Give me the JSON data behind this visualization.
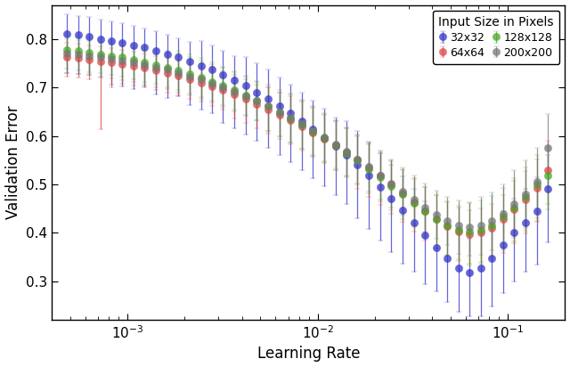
{
  "series": [
    {
      "label": "32x32",
      "color": "#3333cc",
      "x": [
        0.00048,
        0.00055,
        0.00063,
        0.00072,
        0.00082,
        0.00094,
        0.00108,
        0.00123,
        0.00141,
        0.00162,
        0.00185,
        0.00212,
        0.00243,
        0.00278,
        0.00318,
        0.00365,
        0.00418,
        0.00479,
        0.00548,
        0.00628,
        0.00719,
        0.00824,
        0.00944,
        0.0108,
        0.0124,
        0.0142,
        0.0162,
        0.0186,
        0.0213,
        0.0244,
        0.0279,
        0.032,
        0.0366,
        0.0419,
        0.048,
        0.055,
        0.063,
        0.0721,
        0.0826,
        0.0946,
        0.108,
        0.124,
        0.142,
        0.163
      ],
      "y": [
        0.81,
        0.808,
        0.805,
        0.8,
        0.796,
        0.792,
        0.787,
        0.782,
        0.776,
        0.769,
        0.762,
        0.754,
        0.745,
        0.736,
        0.726,
        0.715,
        0.703,
        0.69,
        0.676,
        0.661,
        0.646,
        0.63,
        0.613,
        0.596,
        0.578,
        0.56,
        0.54,
        0.518,
        0.495,
        0.47,
        0.446,
        0.42,
        0.395,
        0.37,
        0.347,
        0.328,
        0.318,
        0.328,
        0.348,
        0.375,
        0.4,
        0.42,
        0.445,
        0.49
      ],
      "yerr_lo": [
        0.08,
        0.08,
        0.08,
        0.08,
        0.09,
        0.09,
        0.09,
        0.08,
        0.09,
        0.09,
        0.08,
        0.09,
        0.09,
        0.09,
        0.1,
        0.1,
        0.1,
        0.1,
        0.1,
        0.1,
        0.1,
        0.1,
        0.1,
        0.1,
        0.1,
        0.1,
        0.11,
        0.11,
        0.11,
        0.11,
        0.11,
        0.1,
        0.1,
        0.09,
        0.09,
        0.09,
        0.09,
        0.1,
        0.1,
        0.1,
        0.1,
        0.1,
        0.11,
        0.11
      ],
      "yerr_hi": [
        0.04,
        0.04,
        0.04,
        0.04,
        0.04,
        0.04,
        0.04,
        0.04,
        0.04,
        0.04,
        0.04,
        0.04,
        0.05,
        0.05,
        0.05,
        0.05,
        0.06,
        0.06,
        0.06,
        0.06,
        0.06,
        0.06,
        0.06,
        0.06,
        0.06,
        0.07,
        0.07,
        0.07,
        0.07,
        0.07,
        0.07,
        0.07,
        0.07,
        0.07,
        0.07,
        0.07,
        0.07,
        0.07,
        0.07,
        0.07,
        0.07,
        0.07,
        0.07,
        0.07
      ]
    },
    {
      "label": "64x64",
      "color": "#dd4444",
      "x": [
        0.00048,
        0.00055,
        0.00063,
        0.00072,
        0.00082,
        0.00094,
        0.00108,
        0.00123,
        0.00141,
        0.00162,
        0.00185,
        0.00212,
        0.00243,
        0.00278,
        0.00318,
        0.00365,
        0.00418,
        0.00479,
        0.00548,
        0.00628,
        0.00719,
        0.00824,
        0.00944,
        0.0108,
        0.0124,
        0.0142,
        0.0162,
        0.0186,
        0.0213,
        0.0244,
        0.0279,
        0.032,
        0.0366,
        0.0419,
        0.048,
        0.055,
        0.063,
        0.0721,
        0.0826,
        0.0946,
        0.108,
        0.124,
        0.142,
        0.163
      ],
      "y": [
        0.762,
        0.76,
        0.757,
        0.754,
        0.751,
        0.748,
        0.744,
        0.74,
        0.735,
        0.73,
        0.724,
        0.717,
        0.71,
        0.702,
        0.694,
        0.685,
        0.676,
        0.666,
        0.655,
        0.644,
        0.632,
        0.62,
        0.607,
        0.594,
        0.58,
        0.566,
        0.551,
        0.535,
        0.518,
        0.5,
        0.482,
        0.463,
        0.445,
        0.428,
        0.413,
        0.402,
        0.397,
        0.4,
        0.41,
        0.428,
        0.448,
        0.468,
        0.492,
        0.53
      ],
      "yerr_lo": [
        0.04,
        0.04,
        0.04,
        0.14,
        0.05,
        0.04,
        0.04,
        0.04,
        0.04,
        0.04,
        0.04,
        0.04,
        0.04,
        0.04,
        0.04,
        0.05,
        0.05,
        0.05,
        0.05,
        0.05,
        0.05,
        0.05,
        0.05,
        0.05,
        0.05,
        0.05,
        0.06,
        0.06,
        0.06,
        0.06,
        0.06,
        0.06,
        0.06,
        0.06,
        0.06,
        0.06,
        0.06,
        0.06,
        0.06,
        0.07,
        0.07,
        0.07,
        0.07,
        0.07
      ],
      "yerr_hi": [
        0.03,
        0.03,
        0.03,
        0.03,
        0.03,
        0.03,
        0.03,
        0.03,
        0.03,
        0.04,
        0.04,
        0.04,
        0.04,
        0.04,
        0.04,
        0.04,
        0.04,
        0.04,
        0.05,
        0.05,
        0.05,
        0.05,
        0.05,
        0.05,
        0.05,
        0.05,
        0.05,
        0.05,
        0.05,
        0.05,
        0.05,
        0.05,
        0.05,
        0.05,
        0.05,
        0.05,
        0.05,
        0.05,
        0.05,
        0.05,
        0.06,
        0.06,
        0.06,
        0.06
      ]
    },
    {
      "label": "128x128",
      "color": "#44aa22",
      "x": [
        0.00048,
        0.00055,
        0.00063,
        0.00072,
        0.00082,
        0.00094,
        0.00108,
        0.00123,
        0.00141,
        0.00162,
        0.00185,
        0.00212,
        0.00243,
        0.00278,
        0.00318,
        0.00365,
        0.00418,
        0.00479,
        0.00548,
        0.00628,
        0.00719,
        0.00824,
        0.00944,
        0.0108,
        0.0124,
        0.0142,
        0.0162,
        0.0186,
        0.0213,
        0.0244,
        0.0279,
        0.032,
        0.0366,
        0.0419,
        0.048,
        0.055,
        0.063,
        0.0721,
        0.0826,
        0.0946,
        0.108,
        0.124,
        0.142,
        0.163
      ],
      "y": [
        0.778,
        0.775,
        0.772,
        0.769,
        0.765,
        0.762,
        0.757,
        0.752,
        0.747,
        0.741,
        0.735,
        0.728,
        0.72,
        0.712,
        0.703,
        0.694,
        0.684,
        0.673,
        0.661,
        0.649,
        0.636,
        0.623,
        0.609,
        0.595,
        0.58,
        0.565,
        0.549,
        0.532,
        0.515,
        0.497,
        0.479,
        0.461,
        0.444,
        0.428,
        0.415,
        0.406,
        0.403,
        0.407,
        0.416,
        0.433,
        0.453,
        0.475,
        0.5,
        0.518
      ],
      "yerr_lo": [
        0.04,
        0.04,
        0.04,
        0.04,
        0.04,
        0.04,
        0.04,
        0.04,
        0.04,
        0.04,
        0.04,
        0.04,
        0.04,
        0.04,
        0.04,
        0.04,
        0.04,
        0.04,
        0.05,
        0.05,
        0.05,
        0.05,
        0.05,
        0.05,
        0.05,
        0.05,
        0.05,
        0.05,
        0.05,
        0.05,
        0.05,
        0.05,
        0.05,
        0.06,
        0.06,
        0.06,
        0.07,
        0.07,
        0.07,
        0.07,
        0.07,
        0.07,
        0.07,
        0.07
      ],
      "yerr_hi": [
        0.03,
        0.03,
        0.03,
        0.03,
        0.03,
        0.03,
        0.03,
        0.03,
        0.03,
        0.03,
        0.04,
        0.04,
        0.04,
        0.04,
        0.04,
        0.04,
        0.04,
        0.04,
        0.04,
        0.04,
        0.05,
        0.05,
        0.05,
        0.05,
        0.05,
        0.05,
        0.05,
        0.05,
        0.05,
        0.05,
        0.05,
        0.05,
        0.05,
        0.05,
        0.05,
        0.05,
        0.06,
        0.06,
        0.06,
        0.06,
        0.06,
        0.06,
        0.06,
        0.06
      ]
    },
    {
      "label": "200x200",
      "color": "#777777",
      "x": [
        0.00048,
        0.00055,
        0.00063,
        0.00072,
        0.00082,
        0.00094,
        0.00108,
        0.00123,
        0.00141,
        0.00162,
        0.00185,
        0.00212,
        0.00243,
        0.00278,
        0.00318,
        0.00365,
        0.00418,
        0.00479,
        0.00548,
        0.00628,
        0.00719,
        0.00824,
        0.00944,
        0.0108,
        0.0124,
        0.0142,
        0.0162,
        0.0186,
        0.0213,
        0.0244,
        0.0279,
        0.032,
        0.0366,
        0.0419,
        0.048,
        0.055,
        0.063,
        0.0721,
        0.0826,
        0.0946,
        0.108,
        0.124,
        0.142,
        0.163
      ],
      "y": [
        0.77,
        0.768,
        0.765,
        0.762,
        0.759,
        0.755,
        0.751,
        0.746,
        0.741,
        0.736,
        0.73,
        0.723,
        0.716,
        0.708,
        0.7,
        0.691,
        0.682,
        0.672,
        0.661,
        0.649,
        0.637,
        0.624,
        0.611,
        0.597,
        0.583,
        0.568,
        0.552,
        0.536,
        0.519,
        0.502,
        0.485,
        0.468,
        0.452,
        0.437,
        0.425,
        0.416,
        0.412,
        0.415,
        0.424,
        0.44,
        0.46,
        0.48,
        0.505,
        0.575
      ],
      "yerr_lo": [
        0.04,
        0.04,
        0.04,
        0.04,
        0.04,
        0.04,
        0.04,
        0.04,
        0.04,
        0.04,
        0.04,
        0.04,
        0.04,
        0.04,
        0.04,
        0.04,
        0.04,
        0.04,
        0.05,
        0.05,
        0.05,
        0.05,
        0.05,
        0.05,
        0.05,
        0.05,
        0.05,
        0.05,
        0.05,
        0.05,
        0.05,
        0.05,
        0.05,
        0.05,
        0.05,
        0.06,
        0.06,
        0.06,
        0.06,
        0.07,
        0.07,
        0.07,
        0.08,
        0.08
      ],
      "yerr_hi": [
        0.03,
        0.03,
        0.03,
        0.03,
        0.03,
        0.03,
        0.03,
        0.03,
        0.03,
        0.04,
        0.04,
        0.04,
        0.04,
        0.04,
        0.04,
        0.04,
        0.04,
        0.04,
        0.04,
        0.04,
        0.05,
        0.05,
        0.05,
        0.05,
        0.05,
        0.05,
        0.05,
        0.05,
        0.05,
        0.05,
        0.05,
        0.05,
        0.05,
        0.05,
        0.05,
        0.05,
        0.05,
        0.06,
        0.06,
        0.06,
        0.07,
        0.07,
        0.07,
        0.07
      ]
    }
  ],
  "xlabel": "Learning Rate",
  "ylabel": "Validation Error",
  "legend_title": "Input Size in Pixels",
  "xlim": [
    0.0004,
    0.2
  ],
  "ylim": [
    0.22,
    0.87
  ],
  "yticks": [
    0.3,
    0.4,
    0.5,
    0.6,
    0.7,
    0.8
  ],
  "markersize": 6,
  "capsize": 2,
  "elinewidth": 0.9,
  "background_color": "#ffffff"
}
